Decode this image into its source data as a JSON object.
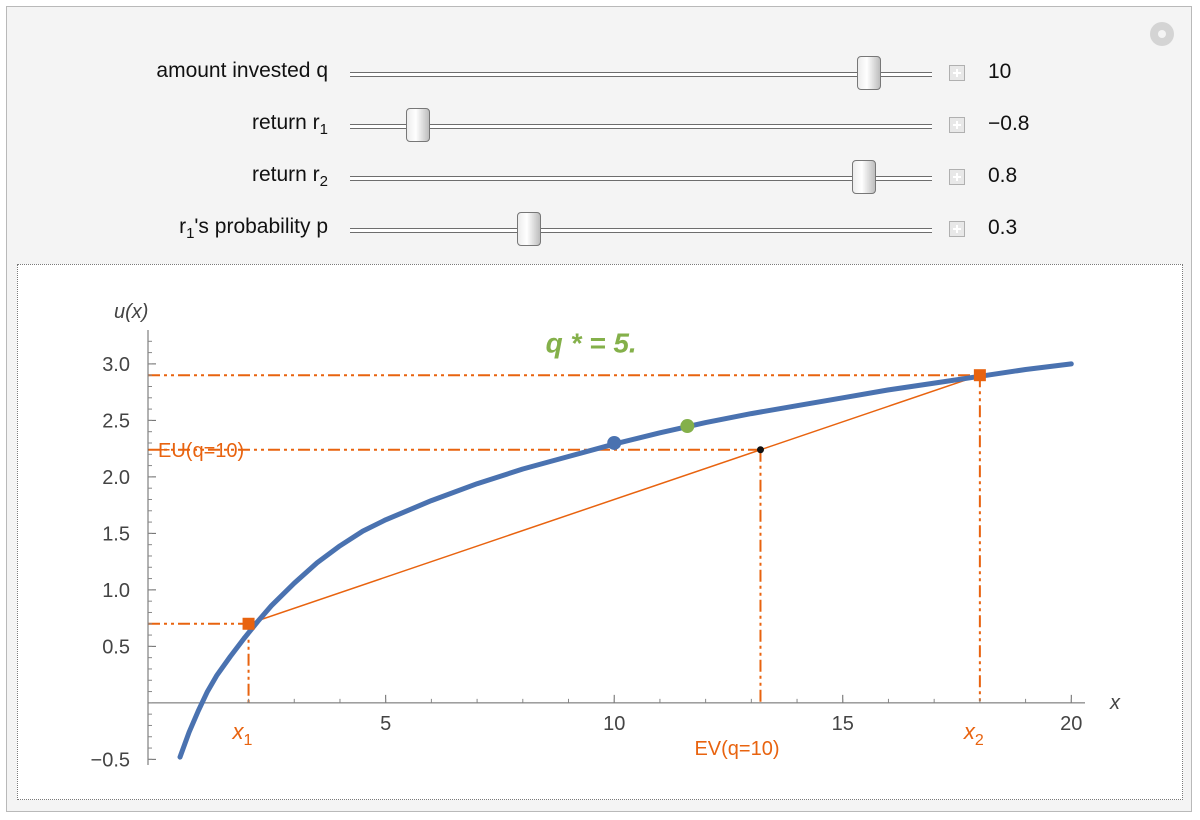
{
  "controls": [
    {
      "label": "amount invested q",
      "sub": "",
      "after": "",
      "value": 10,
      "display": "10",
      "min": 0,
      "max": 11
    },
    {
      "label": "return r",
      "sub": "1",
      "after": "",
      "value": -0.8,
      "display": "−0.8",
      "min": -1,
      "max": 1
    },
    {
      "label": "return r",
      "sub": "2",
      "after": "",
      "value": 0.8,
      "display": "0.8",
      "min": -1,
      "max": 1
    },
    {
      "label": "r",
      "sub": "1",
      "after": "'s probability p",
      "value": 0.3,
      "display": "0.3",
      "min": 0,
      "max": 1
    }
  ],
  "chart_data": {
    "type": "line",
    "xlabel": "x",
    "ylabel": "u(x)",
    "xlim": [
      -0.2,
      20.3
    ],
    "ylim": [
      -0.55,
      3.3
    ],
    "x_ticks": [
      5,
      10,
      15,
      20
    ],
    "y_ticks": [
      -0.5,
      0.5,
      1.0,
      1.5,
      2.0,
      2.5,
      3.0
    ],
    "y_tick_labels": [
      "−0.5",
      "0.5",
      "1.0",
      "1.5",
      "2.0",
      "2.5",
      "3.0"
    ],
    "series": [
      {
        "name": "",
        "x": [
          0.5,
          0.7,
          0.9,
          1.1,
          1.3,
          1.6,
          1.9,
          2.2,
          2.5,
          3,
          3.5,
          4,
          4.5,
          5,
          6,
          7,
          8,
          9,
          10,
          11,
          12,
          13,
          14,
          15,
          16,
          17,
          18,
          19,
          20
        ],
        "y": [
          -0.48,
          -0.26,
          -0.07,
          0.1,
          0.24,
          0.41,
          0.57,
          0.72,
          0.86,
          1.06,
          1.24,
          1.39,
          1.52,
          1.62,
          1.79,
          1.94,
          2.07,
          2.18,
          2.29,
          2.39,
          2.48,
          2.56,
          2.63,
          2.7,
          2.77,
          2.83,
          2.89,
          2.95,
          3.0
        ]
      }
    ],
    "points": {
      "x1": {
        "x": 2.0,
        "y": 0.7
      },
      "x2": {
        "x": 18.0,
        "y": 2.9
      },
      "ev": {
        "x": 13.2,
        "y": 2.24
      },
      "current": {
        "x": 10.0,
        "y": 2.3
      },
      "optimum": {
        "x": 11.6,
        "y": 2.45
      }
    },
    "annotations": {
      "q_star": "q * = 5.",
      "eu_label": "EU(q=10)",
      "ev_label": "EV(q=10)",
      "x1_label": "x",
      "x1_sub": "1",
      "x2_label": "x",
      "x2_sub": "2"
    },
    "colors": {
      "curve": "#4a72b0",
      "accent": "#e8630f",
      "optimum": "#84b04a",
      "ev_point": "#111111"
    }
  }
}
